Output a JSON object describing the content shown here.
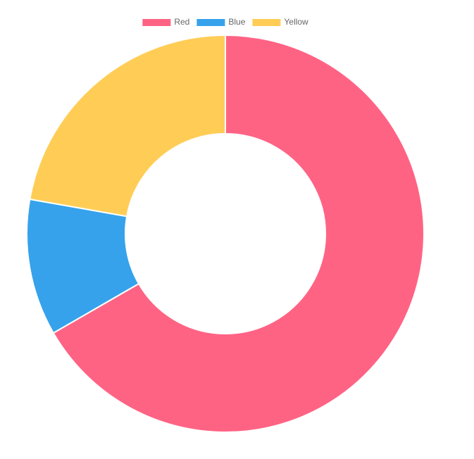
{
  "chart_data": {
    "type": "doughnut",
    "categories": [
      "Red",
      "Blue",
      "Yellow"
    ],
    "values": [
      300,
      50,
      100
    ],
    "colors": [
      "#ff6384",
      "#36a2eb",
      "#ffcd56"
    ],
    "legend": "top"
  }
}
